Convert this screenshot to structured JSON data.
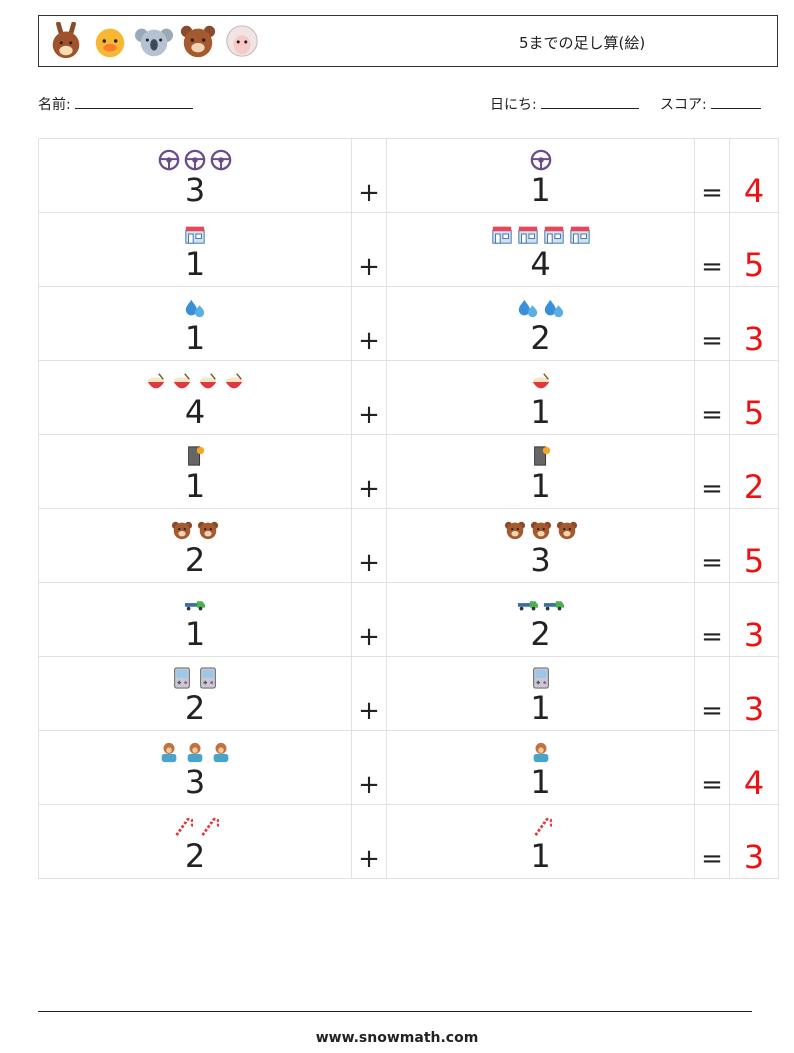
{
  "header": {
    "animals": [
      "bunny-icon",
      "chick-icon",
      "koala-icon",
      "bear-icon",
      "sheep-icon"
    ],
    "title": "5までの足し算(絵)"
  },
  "meta": {
    "name_label": "名前:",
    "date_label": "日にち:",
    "score_label": "スコア:"
  },
  "operators": {
    "plus": "+",
    "equals": "="
  },
  "problems": [
    {
      "a": "3",
      "b": "1",
      "answer": "4",
      "icon": "steering-wheel-icon"
    },
    {
      "a": "1",
      "b": "4",
      "answer": "5",
      "icon": "shop-icon"
    },
    {
      "a": "1",
      "b": "2",
      "answer": "3",
      "icon": "water-drops-icon"
    },
    {
      "a": "4",
      "b": "1",
      "answer": "5",
      "icon": "rice-bowl-icon"
    },
    {
      "a": "1",
      "b": "1",
      "answer": "2",
      "icon": "door-icon"
    },
    {
      "a": "2",
      "b": "3",
      "answer": "5",
      "icon": "bear-face-icon"
    },
    {
      "a": "1",
      "b": "2",
      "answer": "3",
      "icon": "tow-truck-icon"
    },
    {
      "a": "2",
      "b": "1",
      "answer": "3",
      "icon": "game-console-icon"
    },
    {
      "a": "3",
      "b": "1",
      "answer": "4",
      "icon": "person-icon"
    },
    {
      "a": "2",
      "b": "1",
      "answer": "3",
      "icon": "candy-cane-icon"
    }
  ],
  "footer": {
    "site": "www.snowmath.com"
  },
  "colors": {
    "answer": "#ee1111",
    "border": "#e2e2e2"
  }
}
